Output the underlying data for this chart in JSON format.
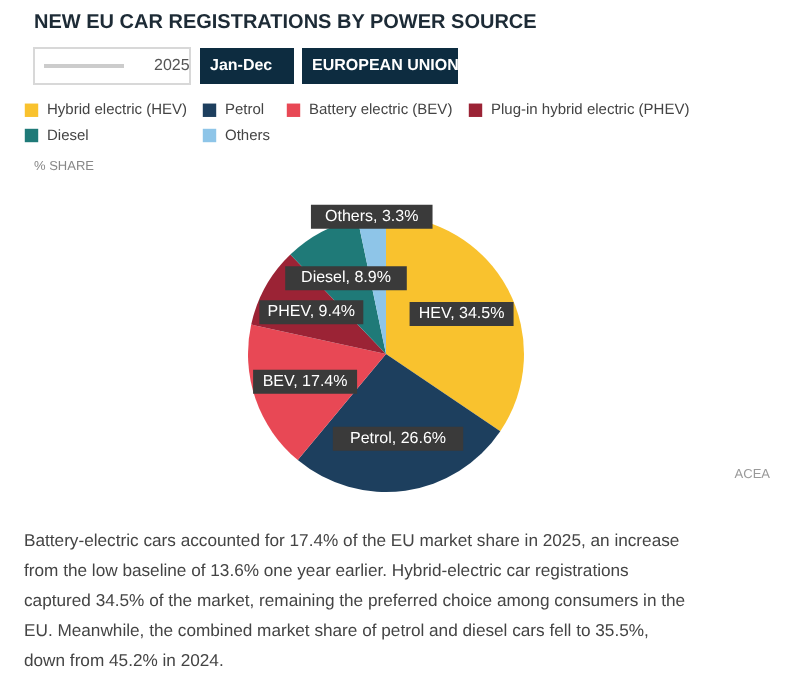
{
  "chart_data": {
    "type": "pie",
    "title": "NEW EU CAR REGISTRATIONS BY POWER SOURCE",
    "ylabel": "% SHARE",
    "categories": [
      "Hybrid electric (HEV)",
      "Petrol",
      "Battery electric (BEV)",
      "Plug-in hybrid electric (PHEV)",
      "Diesel",
      "Others"
    ],
    "values": [
      34.5,
      26.6,
      17.4,
      9.4,
      8.9,
      3.3
    ],
    "colors": [
      "#f9c22e",
      "#1d3f5e",
      "#e84855",
      "#9b2335",
      "#1f7a78",
      "#8ec5e8"
    ],
    "value_labels": [
      "HEV, 34.5%",
      "Petrol, 26.6%",
      "BEV, 17.4%",
      "PHEV, 9.4%",
      "Diesel, 8.9%",
      "Others, 3.3%"
    ],
    "legend": "top",
    "annotations": [
      "2025",
      "Jan-Dec",
      "EUROPEAN UNION",
      "ACEA",
      "Battery-electric cars accounted for 17.4% of the EU market share in 2025, an increase from the low baseline of 13.6% one year earlier. Hybrid-electric car registrations captured 34.5% of the market, remaining the preferred choice among consumers in the EU. Meanwhile, the combined market share of petrol and diesel cars fell to 35.5%, down from 45.2% in 2024."
    ]
  }
}
